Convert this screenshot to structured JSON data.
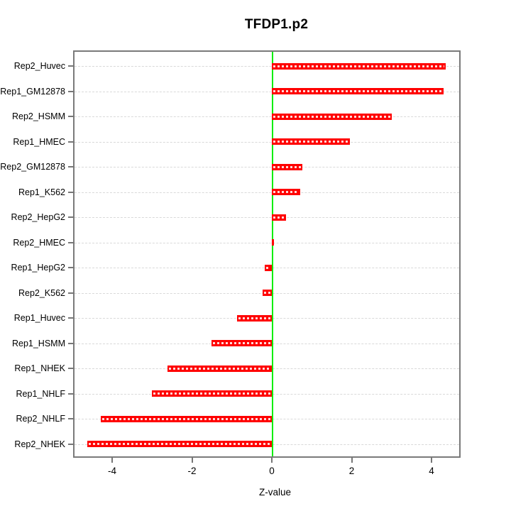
{
  "chart_data": {
    "type": "bar",
    "orientation": "horizontal",
    "title": "TFDP1.p2",
    "xlabel": "Z-value",
    "ylabel": "",
    "categories": [
      "Rep2_Huvec",
      "Rep1_GM12878",
      "Rep2_HSMM",
      "Rep1_HMEC",
      "Rep2_GM12878",
      "Rep1_K562",
      "Rep2_HepG2",
      "Rep2_HMEC",
      "Rep1_HepG2",
      "Rep2_K562",
      "Rep1_Huvec",
      "Rep1_HSMM",
      "Rep1_NHEK",
      "Rep1_NHLF",
      "Rep2_NHLF",
      "Rep2_NHEK"
    ],
    "values": [
      4.35,
      4.31,
      3.01,
      1.96,
      0.76,
      0.71,
      0.35,
      0.05,
      -0.17,
      -0.24,
      -0.87,
      -1.51,
      -2.62,
      -3.0,
      -4.28,
      -4.62
    ],
    "xticks": [
      -4,
      -2,
      0,
      2,
      4
    ],
    "xlim": [
      -4.98,
      4.72
    ],
    "grid": "dashed horizontal guide per category",
    "legend_position": "none",
    "bar_color": "#ff0000",
    "zero_line_color": "#00ee00",
    "gridline_color": "#d9d9d9",
    "box_color": "#7a7a7a",
    "tick_color": "#777777",
    "text_color": "#000000"
  }
}
